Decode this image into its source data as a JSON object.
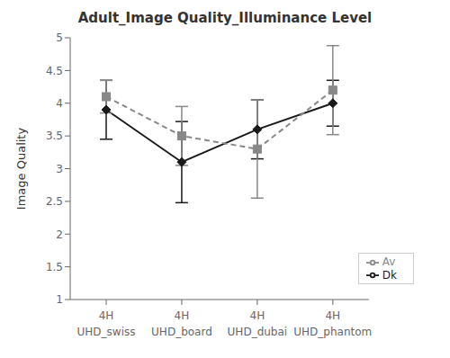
{
  "chart_data": {
    "type": "line",
    "title": "Adult_Image Quality_Illuminance Level",
    "ylabel": "Image Quality",
    "categories": [
      "4H\nUHD_swiss",
      "4H\nUHD_board",
      "4H\nUHD_dubai",
      "4H\nUHD_phantom"
    ],
    "series": [
      {
        "name": "Dk",
        "color": "#1a1a1a",
        "values": [
          3.9,
          3.1,
          3.6,
          4.0
        ],
        "errors": [
          0.45,
          0.62,
          0.45,
          0.35
        ],
        "marker": "diamond",
        "line_style": "solid"
      },
      {
        "name": "Av",
        "color": "#888888",
        "values": [
          4.1,
          3.5,
          3.3,
          4.2
        ],
        "errors": [
          0.25,
          0.45,
          0.75,
          0.68
        ],
        "marker": "square",
        "line_style": "dashed"
      }
    ],
    "ylim": [
      1,
      5
    ],
    "yticks": [
      1,
      1.5,
      2,
      2.5,
      3,
      3.5,
      4,
      4.5,
      5
    ],
    "grid": false,
    "legend": "lower right"
  }
}
